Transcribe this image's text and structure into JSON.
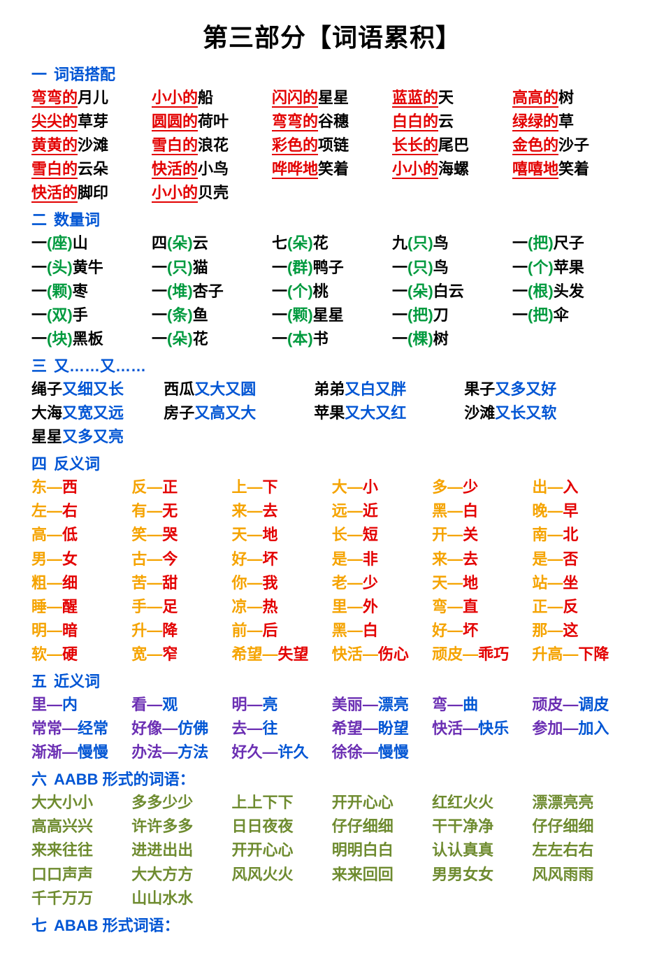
{
  "title": "第三部分【词语累积】",
  "colors": {
    "blue": "#0055d4",
    "red": "#e30000",
    "green": "#009a3e",
    "orange": "#f5a300",
    "purple": "#6b2fb3",
    "olive": "#6e8b2f",
    "black": "#000000",
    "white": "#ffffff"
  },
  "sections": {
    "s1": {
      "num": "一",
      "title": "词语搭配"
    },
    "s2": {
      "num": "二",
      "title": "数量词"
    },
    "s3": {
      "num": "三",
      "title": "又……又……"
    },
    "s4": {
      "num": "四",
      "title": "反义词"
    },
    "s5": {
      "num": "五",
      "title": "近义词"
    },
    "s6": {
      "num": "六",
      "title": "AABB 形式的词语："
    },
    "s7": {
      "num": "七",
      "title": "ABAB 形式词语："
    }
  },
  "sec1": [
    [
      [
        "弯弯的",
        "月儿"
      ],
      [
        "小小的",
        "船"
      ],
      [
        "闪闪的",
        "星星"
      ],
      [
        "蓝蓝的",
        "天"
      ],
      [
        "高高的",
        "树"
      ]
    ],
    [
      [
        "尖尖的",
        "草芽"
      ],
      [
        "圆圆的",
        "荷叶"
      ],
      [
        "弯弯的",
        "谷穗"
      ],
      [
        "白白的",
        "云"
      ],
      [
        "绿绿的",
        "草"
      ]
    ],
    [
      [
        "黄黄的",
        "沙滩"
      ],
      [
        "雪白的",
        "浪花"
      ],
      [
        "彩色的",
        "项链"
      ],
      [
        "长长的",
        "尾巴"
      ],
      [
        "金色的",
        "沙子"
      ]
    ],
    [
      [
        "雪白的",
        "云朵"
      ],
      [
        "快活的",
        "小鸟"
      ],
      [
        "哗哗地",
        "笑着"
      ],
      [
        "小小的",
        "海螺"
      ],
      [
        "嘻嘻地",
        "笑着"
      ]
    ],
    [
      [
        "快活的",
        "脚印"
      ],
      [
        "小小的",
        "贝壳"
      ]
    ]
  ],
  "sec2": [
    [
      [
        "一",
        "座",
        "山"
      ],
      [
        "四",
        "朵",
        "云"
      ],
      [
        "七",
        "朵",
        "花"
      ],
      [
        "九",
        "只",
        "鸟"
      ],
      [
        "一",
        "把",
        "尺子"
      ]
    ],
    [
      [
        "一",
        "头",
        "黄牛"
      ],
      [
        "一",
        "只",
        "猫"
      ],
      [
        "一",
        "群",
        "鸭子"
      ],
      [
        "一",
        "只",
        "鸟"
      ],
      [
        "一",
        "个",
        "苹果"
      ]
    ],
    [
      [
        "一",
        "颗",
        "枣"
      ],
      [
        "一",
        "堆",
        "杏子"
      ],
      [
        "一",
        "个",
        "桃"
      ],
      [
        "一",
        "朵",
        "白云"
      ],
      [
        "一",
        "根",
        "头发"
      ]
    ],
    [
      [
        "一",
        "双",
        "手"
      ],
      [
        "一",
        "条",
        "鱼"
      ],
      [
        "一",
        "颗",
        "星星"
      ],
      [
        "一",
        "把",
        "刀"
      ],
      [
        "一",
        "把",
        "伞"
      ]
    ],
    [
      [
        "一",
        "块",
        "黑板"
      ],
      [
        "一",
        "朵",
        "花"
      ],
      [
        "一",
        "本",
        "书"
      ],
      [
        "一",
        "棵",
        "树"
      ]
    ]
  ],
  "sec3": [
    [
      [
        "绳子",
        "又细又长"
      ],
      [
        "西瓜",
        "又大又圆"
      ],
      [
        "弟弟",
        "又白又胖"
      ],
      [
        "果子",
        "又多又好"
      ]
    ],
    [
      [
        "大海",
        "又宽又远"
      ],
      [
        "房子",
        "又高又大"
      ],
      [
        "苹果",
        "又大又红"
      ],
      [
        "沙滩",
        "又长又软"
      ]
    ],
    [
      [
        "星星",
        "又多又亮"
      ]
    ]
  ],
  "sec4": [
    [
      [
        "东",
        "西"
      ],
      [
        "反",
        "正"
      ],
      [
        "上",
        "下"
      ],
      [
        "大",
        "小"
      ],
      [
        "多",
        "少"
      ],
      [
        "出",
        "入"
      ]
    ],
    [
      [
        "左",
        "右"
      ],
      [
        "有",
        "无"
      ],
      [
        "来",
        "去"
      ],
      [
        "远",
        "近"
      ],
      [
        "黑",
        "白"
      ],
      [
        "晚",
        "早"
      ]
    ],
    [
      [
        "高",
        "低"
      ],
      [
        "笑",
        "哭"
      ],
      [
        "天",
        "地"
      ],
      [
        "长",
        "短"
      ],
      [
        "开",
        "关"
      ],
      [
        "南",
        "北"
      ]
    ],
    [
      [
        "男",
        "女"
      ],
      [
        "古",
        "今"
      ],
      [
        "好",
        "坏"
      ],
      [
        "是",
        "非"
      ],
      [
        "来",
        "去"
      ],
      [
        "是",
        "否"
      ]
    ],
    [
      [
        "粗",
        "细"
      ],
      [
        "苦",
        "甜"
      ],
      [
        "你",
        "我"
      ],
      [
        "老",
        "少"
      ],
      [
        "天",
        "地"
      ],
      [
        "站",
        "坐"
      ]
    ],
    [
      [
        "睡",
        "醒"
      ],
      [
        "手",
        "足"
      ],
      [
        "凉",
        "热"
      ],
      [
        "里",
        "外"
      ],
      [
        "弯",
        "直"
      ],
      [
        "正",
        "反"
      ]
    ],
    [
      [
        "明",
        "暗"
      ],
      [
        "升",
        "降"
      ],
      [
        "前",
        "后"
      ],
      [
        "黑",
        "白"
      ],
      [
        "好",
        "坏"
      ],
      [
        "那",
        "这"
      ]
    ],
    [
      [
        "软",
        "硬"
      ],
      [
        "宽",
        "窄"
      ],
      [
        "希望",
        "失望"
      ],
      [
        "快活",
        "伤心"
      ],
      [
        "顽皮",
        "乖巧"
      ],
      [
        "升高",
        "下降"
      ]
    ]
  ],
  "sec5": [
    [
      [
        "里",
        "内"
      ],
      [
        "看",
        "观"
      ],
      [
        "明",
        "亮"
      ],
      [
        "美丽",
        "漂亮"
      ],
      [
        "弯",
        "曲"
      ],
      [
        "顽皮",
        "调皮"
      ]
    ],
    [
      [
        "常常",
        "经常"
      ],
      [
        "好像",
        "仿佛"
      ],
      [
        "去",
        "往"
      ],
      [
        "希望",
        "盼望"
      ],
      [
        "快活",
        "快乐"
      ],
      [
        "参加",
        "加入"
      ]
    ],
    [
      [
        "渐渐",
        "慢慢"
      ],
      [
        "办法",
        "方法"
      ],
      [
        "好久",
        "许久"
      ],
      [
        "徐徐",
        "慢慢"
      ]
    ]
  ],
  "sec6": [
    [
      "大大小小",
      "多多少少",
      "上上下下",
      "开开心心",
      "红红火火",
      "漂漂亮亮"
    ],
    [
      "高高兴兴",
      "许许多多",
      "日日夜夜",
      "仔仔细细",
      "干干净净",
      "仔仔细细"
    ],
    [
      "来来往往",
      "进进出出",
      "开开心心",
      "明明白白",
      "认认真真",
      "左左右右"
    ],
    [
      "口口声声",
      "大大方方",
      "风风火火",
      "来来回回",
      "男男女女",
      "风风雨雨"
    ],
    [
      "千千万万",
      "山山水水"
    ]
  ]
}
